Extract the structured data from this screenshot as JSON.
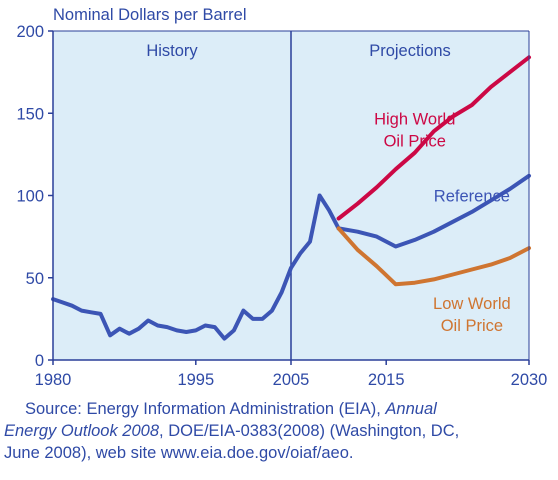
{
  "chart_data": {
    "type": "line",
    "title": "",
    "ylabel": "Nominal Dollars per Barrel",
    "xlabel": "",
    "xlim": [
      1980,
      2030
    ],
    "ylim": [
      0,
      200
    ],
    "x_ticks": [
      "1980",
      "1995",
      "2005",
      "2015",
      "2030"
    ],
    "y_ticks": [
      "0",
      "50",
      "100",
      "150",
      "200"
    ],
    "grid": false,
    "regions": [
      {
        "label": "History",
        "x_range": [
          1980,
          2005
        ]
      },
      {
        "label": "Projections",
        "x_range": [
          2005,
          2030
        ]
      }
    ],
    "region_divider_x": 2005,
    "series": [
      {
        "name": "",
        "color": "#3c55b5",
        "points": [
          [
            1980,
            37
          ],
          [
            1981,
            35
          ],
          [
            1982,
            33
          ],
          [
            1983,
            30
          ],
          [
            1984,
            29
          ],
          [
            1985,
            28
          ],
          [
            1986,
            15
          ],
          [
            1987,
            19
          ],
          [
            1988,
            16
          ],
          [
            1989,
            19
          ],
          [
            1990,
            24
          ],
          [
            1991,
            21
          ],
          [
            1992,
            20
          ],
          [
            1993,
            18
          ],
          [
            1994,
            17
          ],
          [
            1995,
            18
          ],
          [
            1996,
            21
          ],
          [
            1997,
            20
          ],
          [
            1998,
            13
          ],
          [
            1999,
            18
          ],
          [
            2000,
            30
          ],
          [
            2001,
            25
          ],
          [
            2002,
            25
          ],
          [
            2003,
            30
          ],
          [
            2004,
            41
          ],
          [
            2005,
            56
          ],
          [
            2006,
            65
          ],
          [
            2007,
            72
          ],
          [
            2008,
            100
          ],
          [
            2009,
            91
          ],
          [
            2010,
            80
          ]
        ]
      },
      {
        "name": "Reference",
        "color": "#3c55b5",
        "points": [
          [
            2010,
            80
          ],
          [
            2012,
            78
          ],
          [
            2014,
            75
          ],
          [
            2016,
            69
          ],
          [
            2018,
            73
          ],
          [
            2020,
            78
          ],
          [
            2022,
            84
          ],
          [
            2024,
            90
          ],
          [
            2026,
            97
          ],
          [
            2028,
            104
          ],
          [
            2030,
            112
          ]
        ]
      },
      {
        "name": "High World Oil Price",
        "color": "#cc0845",
        "points": [
          [
            2010,
            86
          ],
          [
            2012,
            95
          ],
          [
            2014,
            105
          ],
          [
            2016,
            116
          ],
          [
            2018,
            126
          ],
          [
            2020,
            139
          ],
          [
            2022,
            148
          ],
          [
            2024,
            155
          ],
          [
            2026,
            166
          ],
          [
            2028,
            175
          ],
          [
            2030,
            184
          ]
        ]
      },
      {
        "name": "Low World Oil Price",
        "color": "#cf7531",
        "points": [
          [
            2010,
            80
          ],
          [
            2012,
            67
          ],
          [
            2014,
            57
          ],
          [
            2016,
            46
          ],
          [
            2018,
            47
          ],
          [
            2020,
            49
          ],
          [
            2022,
            52
          ],
          [
            2024,
            55
          ],
          [
            2026,
            58
          ],
          [
            2028,
            62
          ],
          [
            2030,
            68
          ]
        ]
      }
    ],
    "annotations": [
      {
        "series": "High World Oil Price",
        "lines": [
          "High World",
          "Oil Price"
        ]
      },
      {
        "series": "Reference",
        "lines": [
          "Reference"
        ]
      },
      {
        "series": "Low World Oil Price",
        "lines": [
          "Low World",
          "Oil Price"
        ]
      }
    ]
  },
  "colors": {
    "plot_background": "#dcedf8",
    "axis": "#2a3f99",
    "text": "#2f4aa6"
  },
  "source": {
    "line1_prefix": "Source: Energy Information Administration (EIA), ",
    "line1_italic": "Annual",
    "line2_italic": "Energy Outlook 2008",
    "line2_rest": ", DOE/EIA-0383(2008) (Washington, DC,",
    "line3": "June 2008), web site www.eia.doe.gov/oiaf/aeo."
  }
}
